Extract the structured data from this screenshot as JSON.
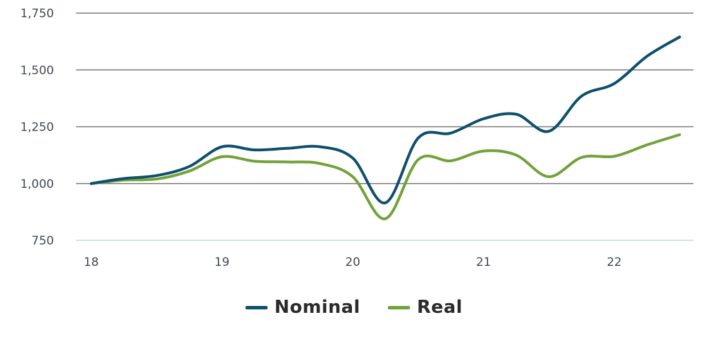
{
  "chart_data": {
    "type": "line",
    "title": "",
    "xlabel": "",
    "ylabel": "",
    "xlim": [
      18,
      22.5
    ],
    "ylim": [
      750,
      1750
    ],
    "x_ticks": [
      18,
      19,
      20,
      21,
      22
    ],
    "x_tick_labels": [
      "18",
      "19",
      "20",
      "21",
      "22"
    ],
    "y_ticks": [
      750,
      1000,
      1250,
      1500,
      1750
    ],
    "y_tick_labels": [
      "750",
      "1,000",
      "1,250",
      "1,500",
      "1,750"
    ],
    "grid": "horizontal",
    "legend_position": "bottom-center",
    "series": [
      {
        "name": "Nominal",
        "color": "#0e4f6d",
        "x": [
          18,
          18.25,
          18.5,
          18.75,
          19,
          19.25,
          19.5,
          19.75,
          20,
          20.25,
          20.5,
          20.75,
          21,
          21.25,
          21.5,
          21.75,
          22,
          22.25,
          22.5
        ],
        "y": [
          1000,
          1022,
          1035,
          1075,
          1162,
          1148,
          1155,
          1162,
          1112,
          915,
          1200,
          1222,
          1285,
          1305,
          1230,
          1385,
          1440,
          1560,
          1645
        ]
      },
      {
        "name": "Real",
        "color": "#72a23a",
        "x": [
          18,
          18.25,
          18.5,
          18.75,
          19,
          19.25,
          19.5,
          19.75,
          20,
          20.25,
          20.5,
          20.75,
          21,
          21.25,
          21.5,
          21.75,
          22,
          22.25,
          22.5
        ],
        "y": [
          1000,
          1015,
          1020,
          1055,
          1118,
          1098,
          1095,
          1088,
          1030,
          845,
          1105,
          1100,
          1143,
          1125,
          1030,
          1115,
          1120,
          1170,
          1215
        ]
      }
    ]
  }
}
